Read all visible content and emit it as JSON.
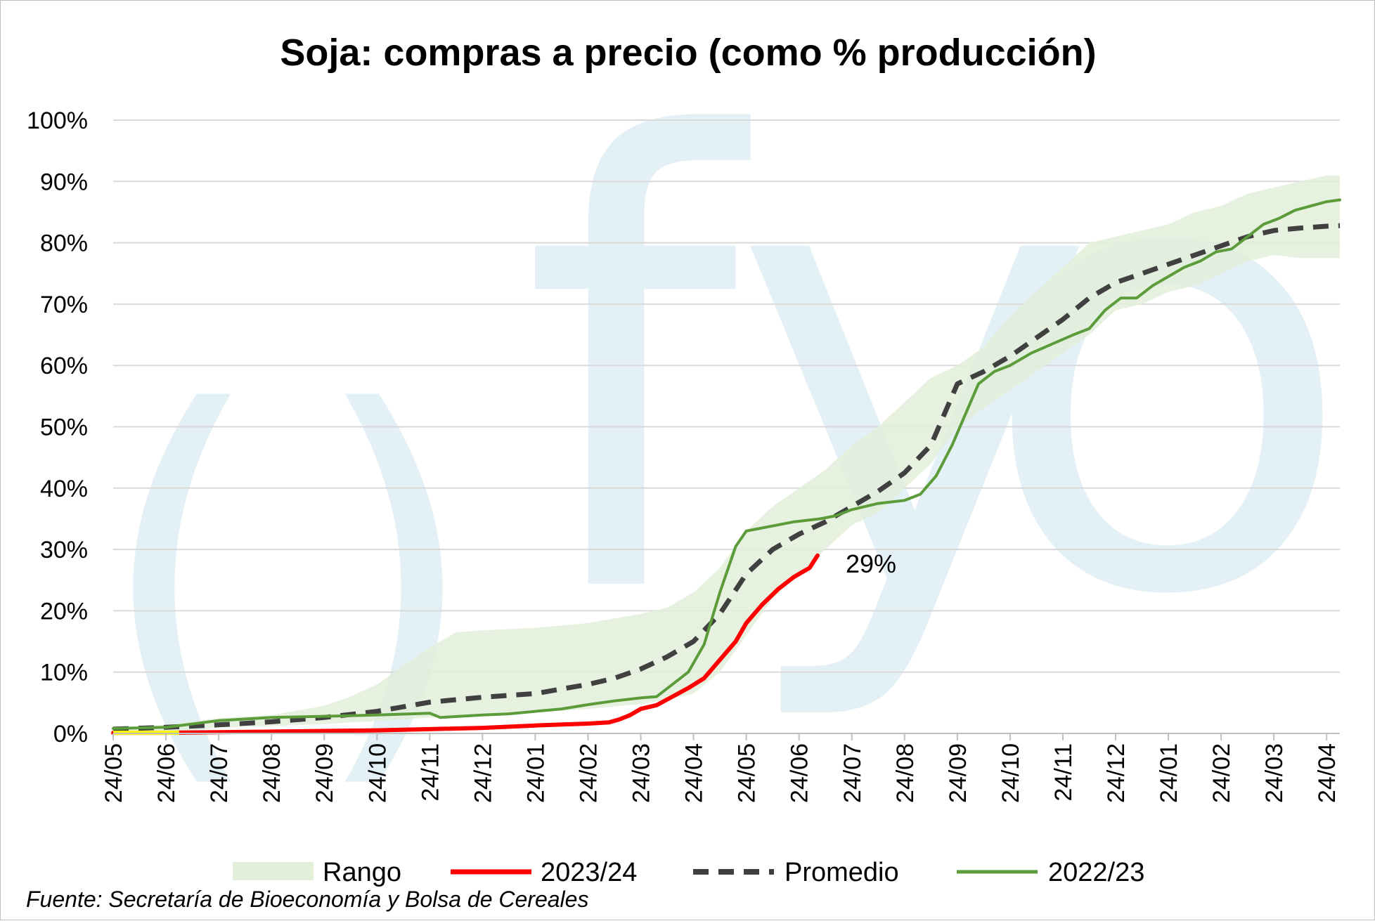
{
  "chart_data": {
    "type": "line",
    "title": "Soja: compras a precio (como % producción)",
    "xlabel": "",
    "ylabel": "",
    "ylim": [
      0,
      100
    ],
    "y_ticks": [
      "0%",
      "10%",
      "20%",
      "30%",
      "40%",
      "50%",
      "60%",
      "70%",
      "80%",
      "90%",
      "100%"
    ],
    "categories": [
      "24/05",
      "24/06",
      "24/07",
      "24/08",
      "24/09",
      "24/10",
      "24/11",
      "24/12",
      "24/01",
      "24/02",
      "24/03",
      "24/04",
      "24/05",
      "24/06",
      "24/07",
      "24/08",
      "24/09",
      "24/10",
      "24/11",
      "24/12",
      "24/01",
      "24/02",
      "24/03",
      "24/04"
    ],
    "grid": true,
    "legend_position": "bottom",
    "series": [
      {
        "name": "Rango",
        "kind": "band",
        "color": "#e2efd9",
        "x": [
          0,
          1,
          2,
          3,
          4,
          4.5,
          5,
          5.5,
          6,
          6.5,
          7,
          8,
          9,
          10,
          10.5,
          11,
          11.5,
          12,
          12.5,
          13,
          13.5,
          14,
          14.5,
          15,
          15.5,
          16,
          16.5,
          17,
          17.5,
          18,
          18.5,
          19,
          19.5,
          20,
          20.5,
          21,
          21.5,
          22,
          22.5,
          23,
          23.25
        ],
        "lower": [
          0,
          0,
          1,
          1.2,
          1.5,
          1.8,
          2,
          2.3,
          2.6,
          2.8,
          3.1,
          3.4,
          4,
          4.8,
          5.5,
          6.5,
          10,
          16,
          22,
          26,
          30,
          34,
          36,
          40,
          44,
          50,
          53,
          56,
          59,
          62,
          65,
          69,
          70,
          72,
          73,
          75,
          77,
          78,
          77.5,
          77.5,
          77.5
        ],
        "upper": [
          1,
          1.4,
          2.5,
          3,
          4.5,
          6,
          8,
          11,
          14,
          16.5,
          16.8,
          17.2,
          18,
          19.5,
          20.5,
          23,
          27,
          33,
          37,
          40,
          43,
          47,
          50,
          54,
          58,
          60,
          63,
          68,
          72,
          76,
          80,
          81,
          82,
          83,
          85,
          86,
          88,
          89,
          90,
          91,
          91
        ]
      },
      {
        "name": "2023/24",
        "color": "#ff0000",
        "x": [
          0,
          1,
          2,
          3,
          4,
          5,
          6,
          7,
          8,
          9,
          9.4,
          9.6,
          9.8,
          10,
          10.3,
          10.6,
          10.9,
          11.2,
          11.5,
          11.8,
          12,
          12.3,
          12.6,
          12.9,
          13.2,
          13.35
        ],
        "values": [
          0.1,
          0.1,
          0.2,
          0.3,
          0.4,
          0.5,
          0.7,
          0.9,
          1.3,
          1.6,
          1.8,
          2.3,
          3,
          4,
          4.6,
          6,
          7.4,
          9,
          12,
          15,
          18,
          21,
          23.5,
          25.5,
          27,
          29
        ]
      },
      {
        "name": "Promedio",
        "color": "#404040",
        "x": [
          0,
          1,
          2,
          3,
          4,
          5,
          6,
          7,
          8,
          9,
          9.5,
          10,
          10.5,
          11,
          11.5,
          12,
          12.5,
          13,
          13.5,
          14,
          14.5,
          15,
          15.5,
          16,
          16.5,
          17,
          17.5,
          18,
          18.5,
          19,
          19.5,
          20,
          20.5,
          21,
          21.5,
          22,
          22.5,
          23,
          23.25
        ],
        "values": [
          0.7,
          1,
          1.4,
          1.9,
          2.6,
          3.6,
          5.1,
          5.9,
          6.5,
          8,
          9,
          10.5,
          12.5,
          15,
          19.5,
          26,
          30,
          32.5,
          34.5,
          37,
          39.5,
          42.5,
          47,
          57,
          59,
          61.5,
          64.5,
          67.5,
          71,
          73.5,
          75,
          76.5,
          78,
          79.5,
          81,
          82,
          82.4,
          82.7,
          82.8
        ]
      },
      {
        "name": "2022/23",
        "color": "#5b9b3a",
        "x": [
          0,
          1,
          2,
          3,
          4,
          5,
          6,
          6.2,
          7,
          7.5,
          8,
          8.5,
          9,
          9.5,
          10,
          10.3,
          10.6,
          10.9,
          11.2,
          11.5,
          11.8,
          12,
          12.3,
          12.6,
          12.9,
          13.2,
          13.4,
          13.7,
          14,
          14.5,
          15,
          15.3,
          15.6,
          15.9,
          16.1,
          16.4,
          16.7,
          17,
          17.4,
          17.8,
          18.2,
          18.5,
          18.8,
          19.1,
          19.4,
          19.7,
          20,
          20.3,
          20.6,
          20.9,
          21.2,
          21.5,
          21.8,
          22.1,
          22.4,
          22.7,
          23,
          23.25
        ],
        "values": [
          0.8,
          1,
          2.1,
          2.6,
          2.8,
          3,
          3.3,
          2.6,
          3,
          3.2,
          3.6,
          4,
          4.7,
          5.3,
          5.8,
          6,
          8,
          10,
          14.5,
          23,
          30.5,
          33,
          33.5,
          34,
          34.5,
          34.8,
          35,
          35.5,
          36.5,
          37.5,
          38,
          39,
          42,
          47,
          51,
          57,
          59,
          60,
          62,
          63.5,
          65,
          66,
          69,
          71,
          71,
          73,
          74.5,
          76,
          77,
          78.5,
          79,
          81,
          83,
          84,
          85.3,
          86,
          86.7,
          87
        ]
      }
    ],
    "annotation": {
      "text": "29%"
    },
    "source": "Fuente: Secretaría de Bioeconomía y Bolsa de Cereales",
    "watermark": "fyo"
  }
}
